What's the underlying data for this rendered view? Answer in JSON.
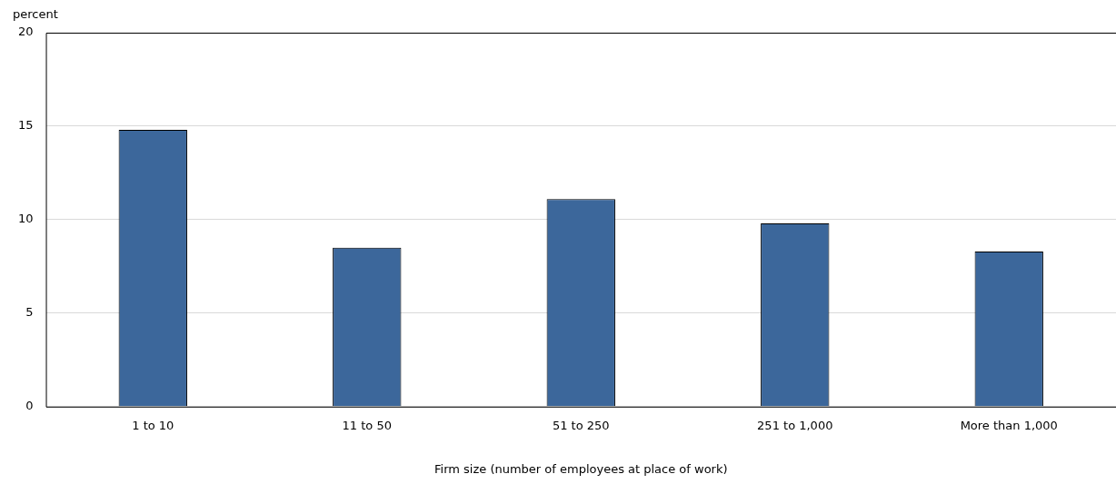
{
  "chart_data": {
    "type": "bar",
    "ylabel": "percent",
    "xlabel": "Firm size (number of employees at place of work)",
    "categories": [
      "1 to 10",
      "11 to 50",
      "51 to 250",
      "251 to 1,000",
      "More than 1,000"
    ],
    "values": [
      14.8,
      8.5,
      11.1,
      9.8,
      8.3
    ],
    "color": "#3c679b",
    "ylim": [
      0,
      20
    ],
    "yticks": [
      0,
      5,
      10,
      15,
      20
    ],
    "grid": "y"
  }
}
